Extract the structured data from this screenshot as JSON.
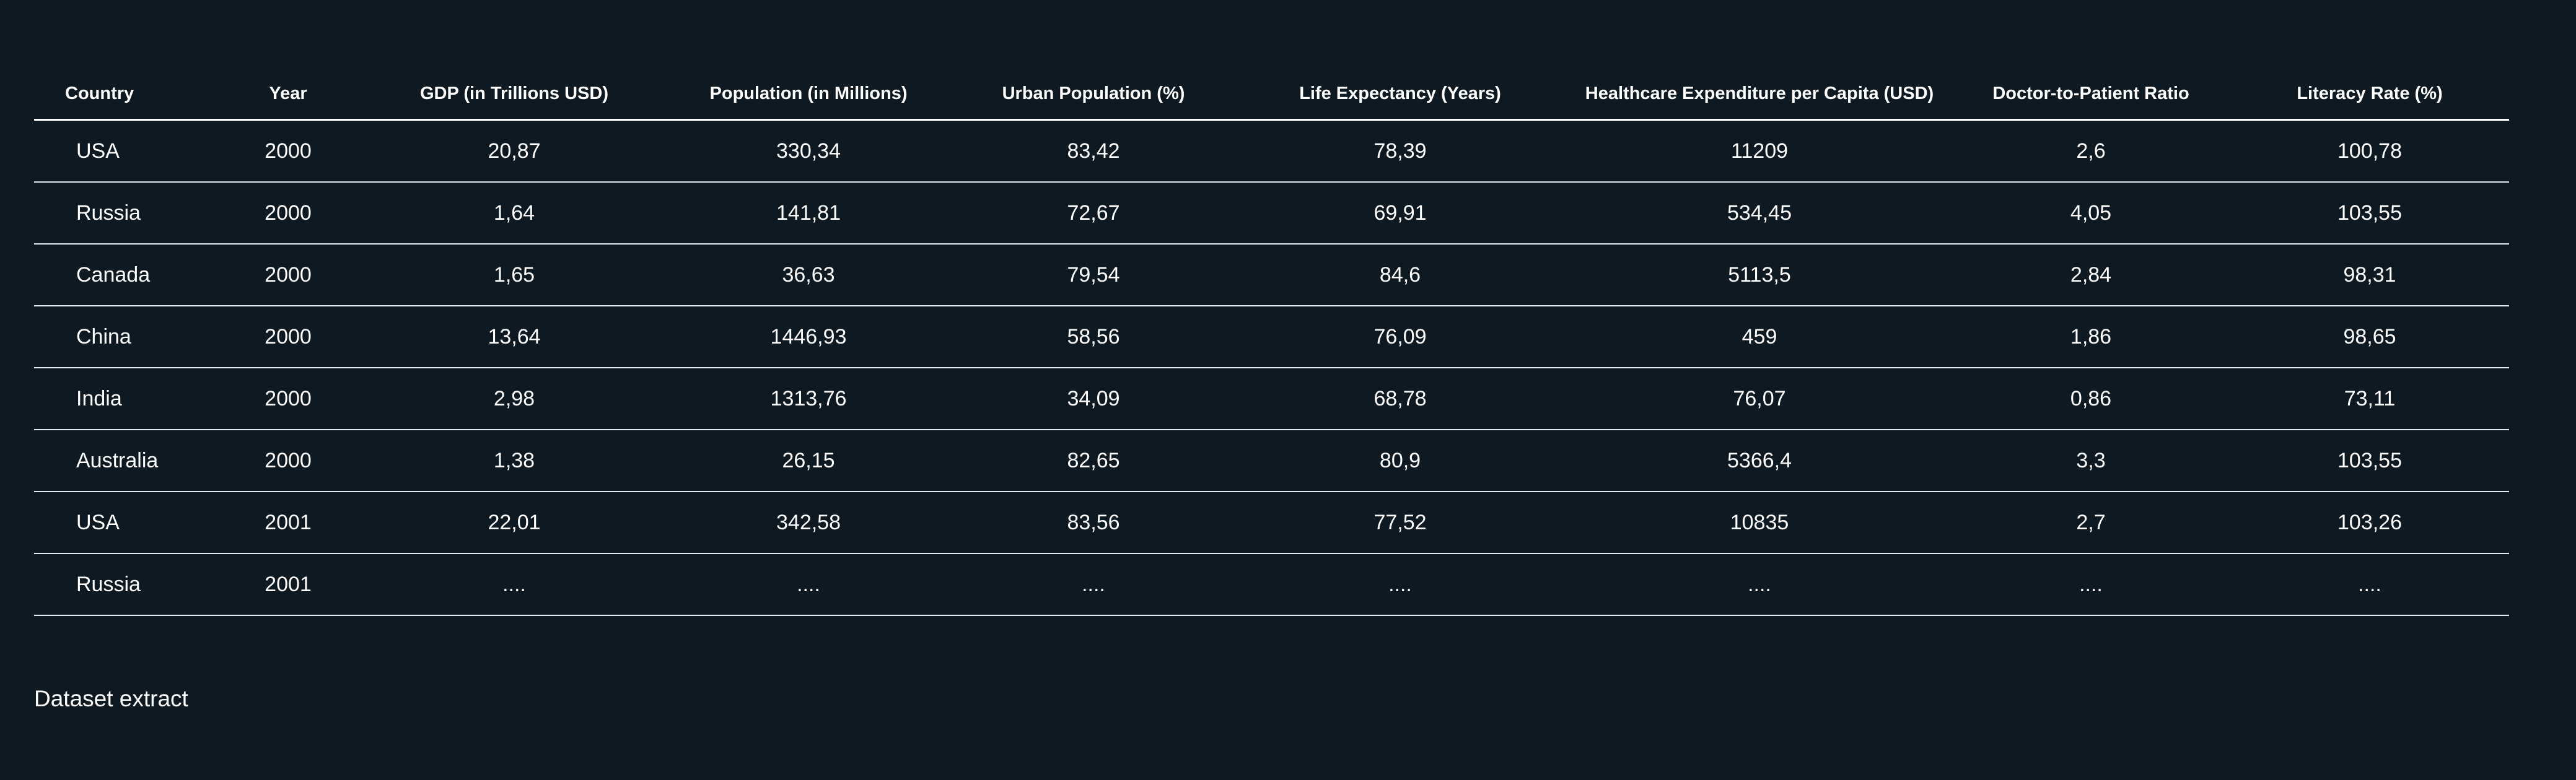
{
  "table": {
    "columns": [
      "Country",
      "Year",
      "GDP (in Trillions USD)",
      "Population (in Millions)",
      "Urban Population (%)",
      "Life Expectancy (Years)",
      "Healthcare Expenditure per Capita (USD)",
      "Doctor-to-Patient Ratio",
      "Literacy Rate (%)"
    ],
    "rows": [
      [
        "USA",
        "2000",
        "20,87",
        "330,34",
        "83,42",
        "78,39",
        "11209",
        "2,6",
        "100,78"
      ],
      [
        "Russia",
        "2000",
        "1,64",
        "141,81",
        "72,67",
        "69,91",
        "534,45",
        "4,05",
        "103,55"
      ],
      [
        "Canada",
        "2000",
        "1,65",
        "36,63",
        "79,54",
        "84,6",
        "5113,5",
        "2,84",
        "98,31"
      ],
      [
        "China",
        "2000",
        "13,64",
        "1446,93",
        "58,56",
        "76,09",
        "459",
        "1,86",
        "98,65"
      ],
      [
        "India",
        "2000",
        "2,98",
        "1313,76",
        "34,09",
        "68,78",
        "76,07",
        "0,86",
        "73,11"
      ],
      [
        "Australia",
        "2000",
        "1,38",
        "26,15",
        "82,65",
        "80,9",
        "5366,4",
        "3,3",
        "103,55"
      ],
      [
        "USA",
        "2001",
        "22,01",
        "342,58",
        "83,56",
        "77,52",
        "10835",
        "2,7",
        "103,26"
      ],
      [
        "Russia",
        "2001",
        "....",
        "....",
        "....",
        "....",
        "....",
        "....",
        "...."
      ]
    ]
  },
  "caption": "Dataset extract"
}
